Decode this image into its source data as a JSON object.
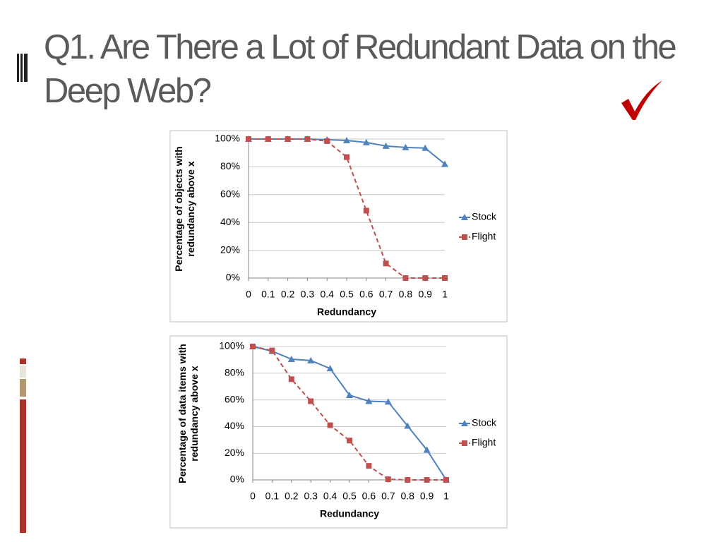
{
  "title": "Q1. Are There a Lot of Redundant Data on the Deep Web?",
  "chart_data": [
    {
      "type": "line",
      "xlabel": "Redundancy",
      "ylabel": "Percentage of objects with redundancy above x",
      "x": [
        0,
        0.1,
        0.2,
        0.3,
        0.4,
        0.5,
        0.6,
        0.7,
        0.8,
        0.9,
        1
      ],
      "xlim": [
        0,
        1
      ],
      "xticks": [
        0,
        0.1,
        0.2,
        0.3,
        0.4,
        0.5,
        0.6,
        0.7,
        0.8,
        0.9,
        1
      ],
      "ylim": [
        0,
        100
      ],
      "yticks": [
        {
          "value": 0,
          "label": "0%"
        },
        {
          "value": 20,
          "label": "20%"
        },
        {
          "value": 40,
          "label": "40%"
        },
        {
          "value": 60,
          "label": "60%"
        },
        {
          "value": 80,
          "label": "80%"
        },
        {
          "value": 100,
          "label": "100%"
        }
      ],
      "grid": true,
      "legend": "right",
      "series": [
        {
          "name": "Stock",
          "color": "#4f81bd",
          "marker": "triangle",
          "dash": false,
          "values": [
            100,
            100,
            100,
            100,
            99.5,
            99,
            97.5,
            95,
            94,
            93.5,
            82
          ]
        },
        {
          "name": "Flight",
          "color": "#c0504d",
          "marker": "square",
          "dash": true,
          "values": [
            100,
            100,
            100,
            100,
            98.5,
            87,
            48.5,
            10.5,
            0,
            0,
            0
          ]
        }
      ]
    },
    {
      "type": "line",
      "xlabel": "Redundancy",
      "ylabel": "Percentage of data items with redundancy above x",
      "x": [
        0,
        0.1,
        0.2,
        0.3,
        0.4,
        0.5,
        0.6,
        0.7,
        0.8,
        0.9,
        1
      ],
      "xlim": [
        0,
        1
      ],
      "xticks": [
        0,
        0.1,
        0.2,
        0.3,
        0.4,
        0.5,
        0.6,
        0.7,
        0.8,
        0.9,
        1
      ],
      "ylim": [
        0,
        100
      ],
      "yticks": [
        {
          "value": 0,
          "label": "0%"
        },
        {
          "value": 20,
          "label": "20%"
        },
        {
          "value": 40,
          "label": "40%"
        },
        {
          "value": 60,
          "label": "60%"
        },
        {
          "value": 80,
          "label": "80%"
        },
        {
          "value": 100,
          "label": "100%"
        }
      ],
      "grid": true,
      "legend": "right",
      "series": [
        {
          "name": "Stock",
          "color": "#4f81bd",
          "marker": "triangle",
          "dash": false,
          "values": [
            100,
            96.5,
            90.5,
            89.5,
            83.5,
            63.5,
            59,
            58.5,
            40.5,
            22.5,
            0
          ]
        },
        {
          "name": "Flight",
          "color": "#c0504d",
          "marker": "square",
          "dash": true,
          "values": [
            100,
            97,
            75.5,
            59,
            41,
            29.5,
            10.5,
            0.5,
            0,
            0,
            0
          ]
        }
      ]
    }
  ]
}
